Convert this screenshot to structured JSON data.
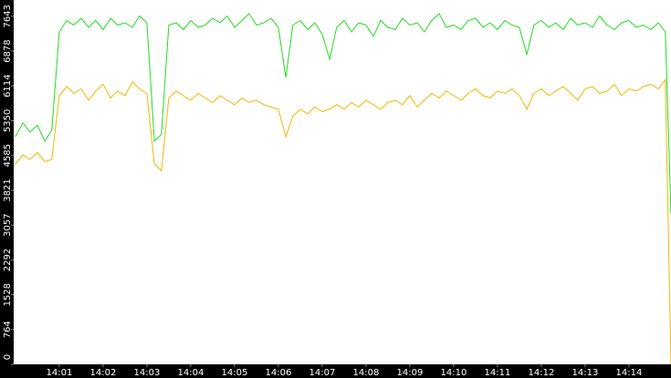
{
  "chart_data": {
    "type": "line",
    "x": [
      0,
      0.17,
      0.33,
      0.5,
      0.67,
      0.83,
      1,
      1.17,
      1.33,
      1.5,
      1.67,
      1.83,
      2,
      2.17,
      2.33,
      2.5,
      2.67,
      2.83,
      3,
      3.17,
      3.33,
      3.5,
      3.67,
      3.83,
      4,
      4.17,
      4.33,
      4.5,
      4.67,
      4.83,
      5,
      5.17,
      5.33,
      5.5,
      5.67,
      5.83,
      6,
      6.17,
      6.33,
      6.5,
      6.67,
      6.83,
      7,
      7.17,
      7.33,
      7.5,
      7.67,
      7.83,
      8,
      8.17,
      8.33,
      8.5,
      8.67,
      8.83,
      9,
      9.17,
      9.33,
      9.5,
      9.67,
      9.83,
      10,
      10.17,
      10.33,
      10.5,
      10.67,
      10.83,
      11,
      11.17,
      11.33,
      11.5,
      11.67,
      11.83,
      12,
      12.17,
      12.33,
      12.5,
      12.67,
      12.83,
      13,
      13.17,
      13.33,
      13.5,
      13.67,
      13.83,
      14,
      14.17,
      14.33,
      14.5,
      14.67,
      14.83,
      14.96
    ],
    "series": [
      {
        "color": "#22dd22",
        "values": [
          5000,
          5300,
          5100,
          5250,
          4900,
          5150,
          7300,
          7550,
          7450,
          7600,
          7400,
          7550,
          7350,
          7600,
          7450,
          7500,
          7400,
          7650,
          7500,
          4900,
          5050,
          7450,
          7500,
          7350,
          7550,
          7400,
          7450,
          7600,
          7500,
          7650,
          7400,
          7550,
          7700,
          7450,
          7500,
          7600,
          7400,
          6300,
          7450,
          7550,
          7350,
          7500,
          7250,
          6700,
          7400,
          7550,
          7300,
          7500,
          7450,
          7200,
          7550,
          7400,
          7350,
          7600,
          7450,
          7500,
          7300,
          7550,
          7700,
          7400,
          7450,
          7350,
          7550,
          7600,
          7400,
          7500,
          7350,
          7550,
          7450,
          7400,
          6800,
          7450,
          7550,
          7400,
          7500,
          7350,
          7600,
          7450,
          7500,
          7400,
          7650,
          7450,
          7350,
          7500,
          7550,
          7400,
          7450,
          7350,
          7500,
          7300,
          3300
        ]
      },
      {
        "color": "#f0b800",
        "values": [
          4400,
          4600,
          4500,
          4650,
          4450,
          4500,
          5900,
          6100,
          5950,
          6050,
          5800,
          6000,
          6150,
          5850,
          6000,
          5900,
          6200,
          6050,
          5950,
          4400,
          4250,
          5850,
          6000,
          5900,
          5800,
          5950,
          5850,
          5750,
          5900,
          5800,
          5700,
          5850,
          5750,
          5800,
          5700,
          5650,
          5600,
          5000,
          5450,
          5600,
          5500,
          5650,
          5550,
          5600,
          5700,
          5600,
          5750,
          5650,
          5800,
          5700,
          5600,
          5750,
          5800,
          5700,
          5900,
          5650,
          5800,
          5950,
          5850,
          6000,
          5900,
          5800,
          5950,
          6050,
          5900,
          5850,
          6000,
          5950,
          6050,
          5900,
          5600,
          5950,
          6050,
          5900,
          6000,
          6100,
          5950,
          5800,
          6050,
          6100,
          5950,
          6000,
          6150,
          5900,
          6050,
          6000,
          6100,
          6150,
          6050,
          6250,
          0
        ]
      }
    ],
    "xlim": [
      -0.04,
      14.96
    ],
    "xticks": [
      {
        "value": 1,
        "label": "14:01"
      },
      {
        "value": 2,
        "label": "14:02"
      },
      {
        "value": 3,
        "label": "14:03"
      },
      {
        "value": 4,
        "label": "14:04"
      },
      {
        "value": 5,
        "label": "14:05"
      },
      {
        "value": 6,
        "label": "14:06"
      },
      {
        "value": 7,
        "label": "14:07"
      },
      {
        "value": 8,
        "label": "14:08"
      },
      {
        "value": 9,
        "label": "14:09"
      },
      {
        "value": 10,
        "label": "14:10"
      },
      {
        "value": 11,
        "label": "14:11"
      },
      {
        "value": 12,
        "label": "14:12"
      },
      {
        "value": 13,
        "label": "14:13"
      },
      {
        "value": 14,
        "label": "14:14"
      }
    ],
    "ylim": [
      0,
      8000
    ],
    "yticks": [
      0,
      764,
      1528,
      2292,
      3057,
      3821,
      4585,
      5350,
      6114,
      6878,
      7643
    ]
  }
}
